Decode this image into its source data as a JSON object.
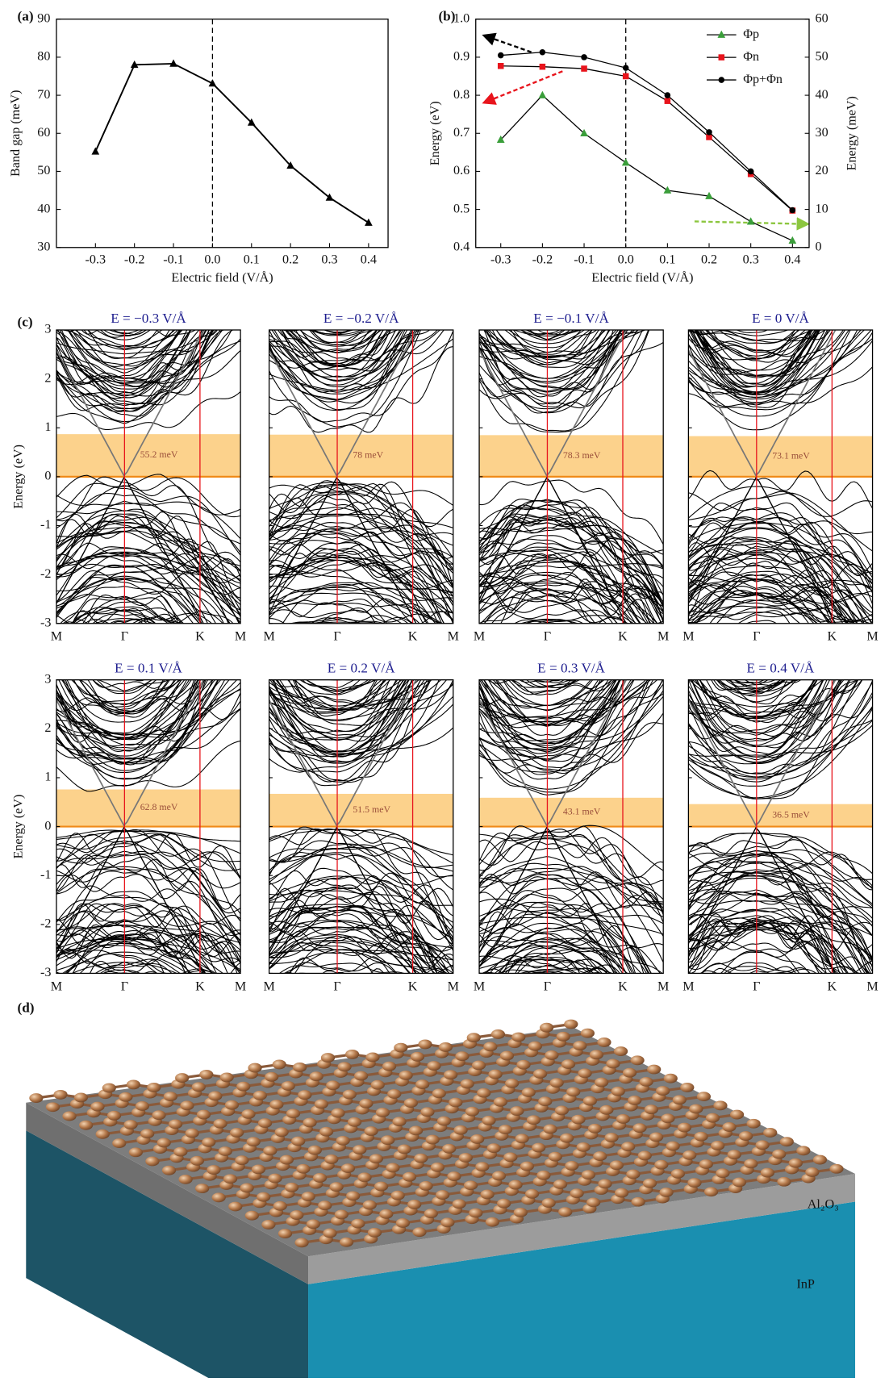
{
  "chart_data": [
    {
      "type": "line",
      "panel_label": "(a)",
      "xlabel": "Electric field (V/Å)",
      "ylabel": "Band gap (meV)",
      "x": [
        -0.3,
        -0.2,
        -0.1,
        0,
        0.1,
        0.2,
        0.3,
        0.4
      ],
      "values": [
        55.2,
        78,
        78.3,
        73.1,
        62.8,
        51.5,
        43.1,
        36.5
      ],
      "color": "#000000",
      "marker": "triangle",
      "xlim": [
        -0.4,
        0.45
      ],
      "xticks": [
        -0.3,
        -0.2,
        -0.1,
        {
          "value": 0,
          "label": "0.0"
        },
        0.1,
        0.2,
        0.3,
        0.4
      ],
      "ylim": [
        30,
        90
      ],
      "yticks": [
        30,
        40,
        50,
        60,
        70,
        80,
        90
      ],
      "vline": 0
    },
    {
      "type": "line",
      "panel_label": "(b)",
      "xlabel": "Electric field (V/Å)",
      "ylabel": "Energy (eV)",
      "y2label": "Energy (meV)",
      "x": [
        -0.3,
        -0.2,
        -0.1,
        0,
        0.1,
        0.2,
        0.3,
        0.4
      ],
      "xlim": [
        -0.36,
        0.44
      ],
      "xticks": [
        -0.3,
        -0.2,
        -0.1,
        {
          "value": 0,
          "label": "0.0"
        },
        0.1,
        0.2,
        0.3,
        0.4
      ],
      "ylim": [
        0.4,
        1.0
      ],
      "yticks": [
        0.4,
        0.5,
        0.6,
        0.7,
        0.8,
        0.9,
        {
          "value": 1,
          "label": "1.0"
        }
      ],
      "y2lim": [
        0,
        60
      ],
      "y2ticks": [
        0,
        10,
        20,
        30,
        40,
        50,
        60
      ],
      "legend": "upper right",
      "vline": 0,
      "series": [
        {
          "name": "Φp",
          "color": "#3a9e3a",
          "marker": "triangle",
          "axis": "y2",
          "values": [
            28.3,
            40,
            30,
            22.3,
            15,
            13.5,
            6.8,
            1.8
          ]
        },
        {
          "name": "Φn",
          "color": "#e8141c",
          "marker": "square",
          "values": [
            0.877,
            0.875,
            0.87,
            0.85,
            0.785,
            0.69,
            0.593,
            0.497
          ]
        },
        {
          "name": "Φp+Φn",
          "color": "#000000",
          "marker": "circle",
          "values": [
            0.905,
            0.913,
            0.9,
            0.872,
            0.8,
            0.703,
            0.6,
            0.498
          ]
        }
      ]
    },
    {
      "type": "bands",
      "panel_label": "(c)",
      "ylabel": "Energy (eV)",
      "ylim": [
        -3,
        3
      ],
      "yticks": [
        -3,
        -2,
        -1,
        0,
        1,
        2,
        3
      ],
      "kpoints": [
        "M",
        "Γ",
        "K",
        "M"
      ],
      "panels": [
        {
          "title": "E = −0.3 V/Å",
          "gap_label": "55.2 meV",
          "shade": [
            0,
            0.87
          ]
        },
        {
          "title": "E = −0.2 V/Å",
          "gap_label": "78 meV",
          "shade": [
            0,
            0.86
          ]
        },
        {
          "title": "E = −0.1 V/Å",
          "gap_label": "78.3 meV",
          "shade": [
            0,
            0.85
          ]
        },
        {
          "title": "E = 0 V/Å",
          "gap_label": "73.1 meV",
          "shade": [
            0,
            0.83
          ]
        },
        {
          "title": "E = 0.1 V/Å",
          "gap_label": "62.8 meV",
          "shade": [
            0,
            0.76
          ]
        },
        {
          "title": "E = 0.2 V/Å",
          "gap_label": "51.5 meV",
          "shade": [
            0,
            0.67
          ]
        },
        {
          "title": "E = 0.3 V/Å",
          "gap_label": "43.1 meV",
          "shade": [
            0,
            0.59
          ]
        },
        {
          "title": "E = 0.4 V/Å",
          "gap_label": "36.5 meV",
          "shade": [
            0,
            0.46
          ]
        }
      ]
    }
  ],
  "figure_d": {
    "label": "(d)",
    "layers": [
      "Al₂O₃",
      "InP"
    ]
  }
}
